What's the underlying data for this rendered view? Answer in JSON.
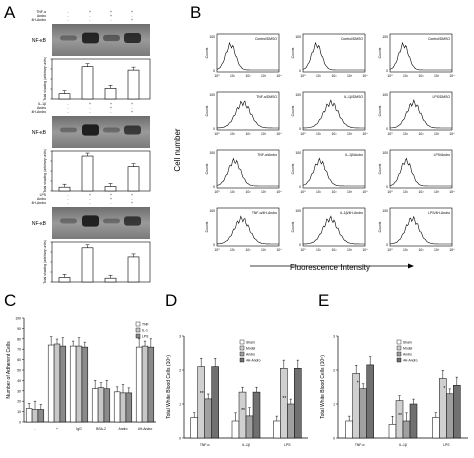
{
  "panel_labels": [
    "A",
    "B",
    "C",
    "D",
    "E"
  ],
  "panelA": {
    "blots": [
      {
        "conditions": [
          "TNF-α",
          "Andro",
          "4H-Andro"
        ],
        "signs": [
          [
            "-",
            "+",
            "+",
            "+"
          ],
          [
            "-",
            "-",
            "+",
            "-"
          ],
          [
            "-",
            "-",
            "-",
            "+"
          ]
        ],
        "band_label": "NF-κB",
        "ylabel": "Total shading (arbitrary units)",
        "values": [
          14,
          85,
          28,
          76
        ]
      },
      {
        "conditions": [
          "IL-1β",
          "Andro",
          "4H-Andro"
        ],
        "signs": [
          [
            "-",
            "+",
            "+",
            "+"
          ],
          [
            "-",
            "-",
            "+",
            "-"
          ],
          [
            "-",
            "-",
            "-",
            "+"
          ]
        ],
        "band_label": "NF-κB",
        "ylabel": "Total shading (arbitrary units)",
        "values": [
          10,
          92,
          12,
          64
        ]
      },
      {
        "conditions": [
          "LPS",
          "Andro",
          "4H-Andro"
        ],
        "signs": [
          [
            "-",
            "+",
            "+",
            "+"
          ],
          [
            "-",
            "-",
            "+",
            "-"
          ],
          [
            "-",
            "-",
            "-",
            "+"
          ]
        ],
        "band_label": "NF-κB",
        "ylabel": "Total shading (arbitrary units)",
        "values": [
          12,
          90,
          10,
          66
        ]
      }
    ]
  },
  "panelB": {
    "ylabel": "Cell number",
    "xlabel": "Fluorescence Intensity",
    "hist_ylabel": "Counts",
    "xticks": [
      "10⁰",
      "10¹",
      "10²",
      "10³",
      "10⁴"
    ],
    "yticks": [
      "0",
      "100"
    ],
    "grid": [
      [
        "Control/DMSO",
        "Control/DMSO",
        "Control/DMSO"
      ],
      [
        "TNF-α/DMSO",
        "IL-1β/DMSO",
        "LPS/DMSO"
      ],
      [
        "TNF-α/Andro",
        "IL-1β/Andro",
        "LPS/Andro"
      ],
      [
        "TNF-α/4H-Andro",
        "IL-1β/4H-Andro",
        "LPS/4H-Andro"
      ]
    ]
  },
  "chart_data": [
    {
      "type": "bar",
      "panel": "C",
      "ylabel": "Number of Adherent Cells",
      "ylim": [
        0,
        100
      ],
      "yticks": [
        0,
        10,
        20,
        30,
        40,
        50,
        60,
        70,
        80,
        90,
        100
      ],
      "categories": [
        "-",
        "+",
        "IgG",
        "BSA-2",
        "Andro",
        "4H-Andro"
      ],
      "series": [
        {
          "name": "TNF",
          "color": "#ffffff",
          "values": [
            13,
            74,
            73,
            32,
            29,
            72
          ]
        },
        {
          "name": "IL-1",
          "color": "#c8c8c8",
          "values": [
            12,
            75,
            73,
            33,
            28,
            73
          ]
        },
        {
          "name": "LPS",
          "color": "#8a8a8a",
          "values": [
            12,
            73,
            72,
            32,
            28,
            72
          ]
        }
      ],
      "legend": "top-right"
    },
    {
      "type": "bar",
      "panel": "D",
      "ylabel": "Total White Blood Cells (10⁵)",
      "ylim": [
        0,
        3
      ],
      "yticks": [
        "0",
        "1",
        "2",
        "3"
      ],
      "categories": [
        "TNF-α",
        "IL-1β",
        "LPS"
      ],
      "series": [
        {
          "name": "Sham",
          "color": "#ffffff",
          "values": [
            0.6,
            0.5,
            0.5
          ]
        },
        {
          "name": "Model",
          "color": "#d0d0d0",
          "values": [
            2.1,
            1.35,
            2.05
          ]
        },
        {
          "name": "Andro",
          "color": "#a0a0a0",
          "values": [
            1.15,
            0.65,
            1.0
          ]
        },
        {
          "name": "4H-Andro",
          "color": "#707070",
          "values": [
            2.1,
            1.35,
            2.05
          ]
        }
      ],
      "annotations": [
        "**",
        "**",
        "**"
      ],
      "legend": "top-center"
    },
    {
      "type": "bar",
      "panel": "E",
      "ylabel": "Total White Blood Cells (10⁵)",
      "ylim": [
        0,
        3
      ],
      "yticks": [
        "0",
        "1",
        "2",
        "3"
      ],
      "categories": [
        "TNF-α",
        "IL-1β",
        "LPS"
      ],
      "series": [
        {
          "name": "Sham",
          "color": "#ffffff",
          "values": [
            0.5,
            0.4,
            0.6
          ]
        },
        {
          "name": "Model",
          "color": "#d0d0d0",
          "values": [
            1.9,
            1.1,
            1.75
          ]
        },
        {
          "name": "Andro",
          "color": "#a0a0a0",
          "values": [
            1.45,
            0.5,
            1.3
          ]
        },
        {
          "name": "4H-Andro",
          "color": "#707070",
          "values": [
            2.15,
            1.0,
            1.55
          ]
        }
      ],
      "annotations": [
        "*",
        "**",
        "*"
      ],
      "legend": "top-center"
    }
  ]
}
